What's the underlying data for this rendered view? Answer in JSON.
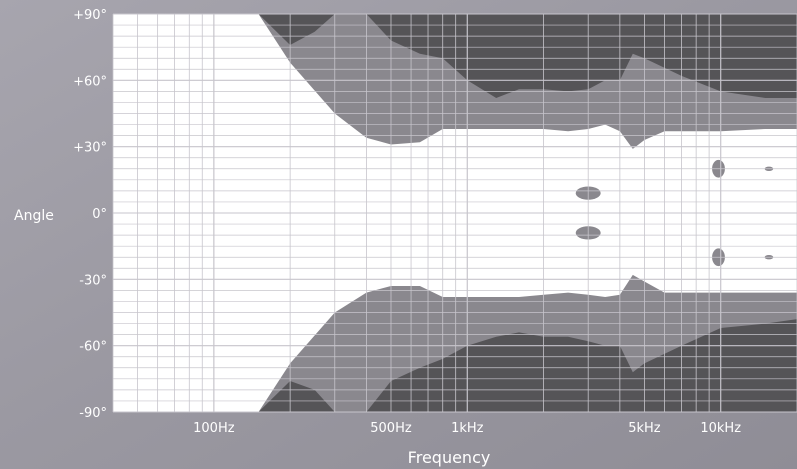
{
  "chart_data": {
    "type": "heatmap",
    "description_free": true,
    "y_axis_label": "Angle",
    "x_axis_label": "Frequency",
    "x_scale": "log",
    "x_range_hz": [
      40,
      20000
    ],
    "y_range_deg": [
      -90,
      90
    ],
    "x_ticks": [
      {
        "value": 100,
        "label": "100Hz"
      },
      {
        "value": 500,
        "label": "500Hz"
      },
      {
        "value": 1000,
        "label": "1kHz"
      },
      {
        "value": 5000,
        "label": "5kHz"
      },
      {
        "value": 10000,
        "label": "10kHz"
      }
    ],
    "y_ticks": [
      {
        "value": 90,
        "label": "+90°"
      },
      {
        "value": 60,
        "label": "+60°"
      },
      {
        "value": 30,
        "label": "+30°"
      },
      {
        "value": 0,
        "label": "0°"
      },
      {
        "value": -30,
        "label": "-30°"
      },
      {
        "value": -60,
        "label": "-60°"
      },
      {
        "value": -90,
        "label": "-90°"
      }
    ],
    "grid": true,
    "levels": [
      {
        "name": "high",
        "color": "#ffffff"
      },
      {
        "name": "mid",
        "color": "#8a888e"
      },
      {
        "name": "low",
        "color": "#555457"
      }
    ],
    "contours": {
      "white_upper_boundary": [
        [
          40,
          90
        ],
        [
          150,
          90
        ],
        [
          200,
          68
        ],
        [
          300,
          45
        ],
        [
          400,
          34
        ],
        [
          500,
          31
        ],
        [
          650,
          32
        ],
        [
          800,
          38
        ],
        [
          1000,
          38
        ],
        [
          1600,
          38
        ],
        [
          2000,
          38
        ],
        [
          2500,
          37
        ],
        [
          3000,
          38
        ],
        [
          3500,
          40
        ],
        [
          4000,
          37
        ],
        [
          4500,
          29
        ],
        [
          5000,
          33
        ],
        [
          6000,
          37
        ],
        [
          10000,
          37
        ],
        [
          15000,
          38
        ],
        [
          20000,
          38
        ]
      ],
      "white_lower_boundary": [
        [
          40,
          -90
        ],
        [
          150,
          -90
        ],
        [
          200,
          -68
        ],
        [
          300,
          -45
        ],
        [
          400,
          -36
        ],
        [
          500,
          -33
        ],
        [
          650,
          -33
        ],
        [
          800,
          -38
        ],
        [
          1000,
          -38
        ],
        [
          1600,
          -38
        ],
        [
          2000,
          -37
        ],
        [
          2500,
          -36
        ],
        [
          3000,
          -37
        ],
        [
          3500,
          -38
        ],
        [
          4000,
          -37
        ],
        [
          4500,
          -28
        ],
        [
          5000,
          -31
        ],
        [
          6000,
          -36
        ],
        [
          10000,
          -36
        ],
        [
          15000,
          -36
        ],
        [
          20000,
          -36
        ]
      ],
      "dark_upper_boundary": [
        [
          150,
          90
        ],
        [
          200,
          76
        ],
        [
          250,
          82
        ],
        [
          300,
          90
        ],
        [
          400,
          90
        ],
        [
          500,
          78
        ],
        [
          650,
          72
        ],
        [
          800,
          70
        ],
        [
          1000,
          60
        ],
        [
          1300,
          52
        ],
        [
          1600,
          56
        ],
        [
          2000,
          56
        ],
        [
          2500,
          55
        ],
        [
          3000,
          56
        ],
        [
          3500,
          60
        ],
        [
          4000,
          60
        ],
        [
          4500,
          72
        ],
        [
          5000,
          70
        ],
        [
          7000,
          62
        ],
        [
          10000,
          55
        ],
        [
          15000,
          52
        ],
        [
          20000,
          52
        ]
      ],
      "dark_lower_boundary": [
        [
          150,
          -90
        ],
        [
          200,
          -76
        ],
        [
          250,
          -80
        ],
        [
          300,
          -90
        ],
        [
          400,
          -90
        ],
        [
          500,
          -76
        ],
        [
          650,
          -70
        ],
        [
          800,
          -66
        ],
        [
          1000,
          -60
        ],
        [
          1300,
          -56
        ],
        [
          1600,
          -54
        ],
        [
          2000,
          -56
        ],
        [
          2500,
          -56
        ],
        [
          3000,
          -58
        ],
        [
          3500,
          -60
        ],
        [
          4000,
          -60
        ],
        [
          4500,
          -72
        ],
        [
          5000,
          -68
        ],
        [
          7000,
          -60
        ],
        [
          10000,
          -52
        ],
        [
          15000,
          -50
        ],
        [
          20000,
          -48
        ]
      ]
    },
    "islands": [
      {
        "level": "mid",
        "center_hz": 3000,
        "center_deg": 9,
        "half_width_hz_ratio": 1.12,
        "half_height_deg": 3
      },
      {
        "level": "mid",
        "center_hz": 3000,
        "center_deg": -9,
        "half_width_hz_ratio": 1.12,
        "half_height_deg": 3
      },
      {
        "level": "mid",
        "center_hz": 9800,
        "center_deg": 20,
        "half_width_hz_ratio": 1.06,
        "half_height_deg": 4
      },
      {
        "level": "mid",
        "center_hz": 9800,
        "center_deg": -20,
        "half_width_hz_ratio": 1.06,
        "half_height_deg": 4
      },
      {
        "level": "mid",
        "center_hz": 15500,
        "center_deg": 20,
        "half_width_hz_ratio": 1.04,
        "half_height_deg": 1
      },
      {
        "level": "mid",
        "center_hz": 15500,
        "center_deg": -20,
        "half_width_hz_ratio": 1.04,
        "half_height_deg": 1
      }
    ]
  }
}
